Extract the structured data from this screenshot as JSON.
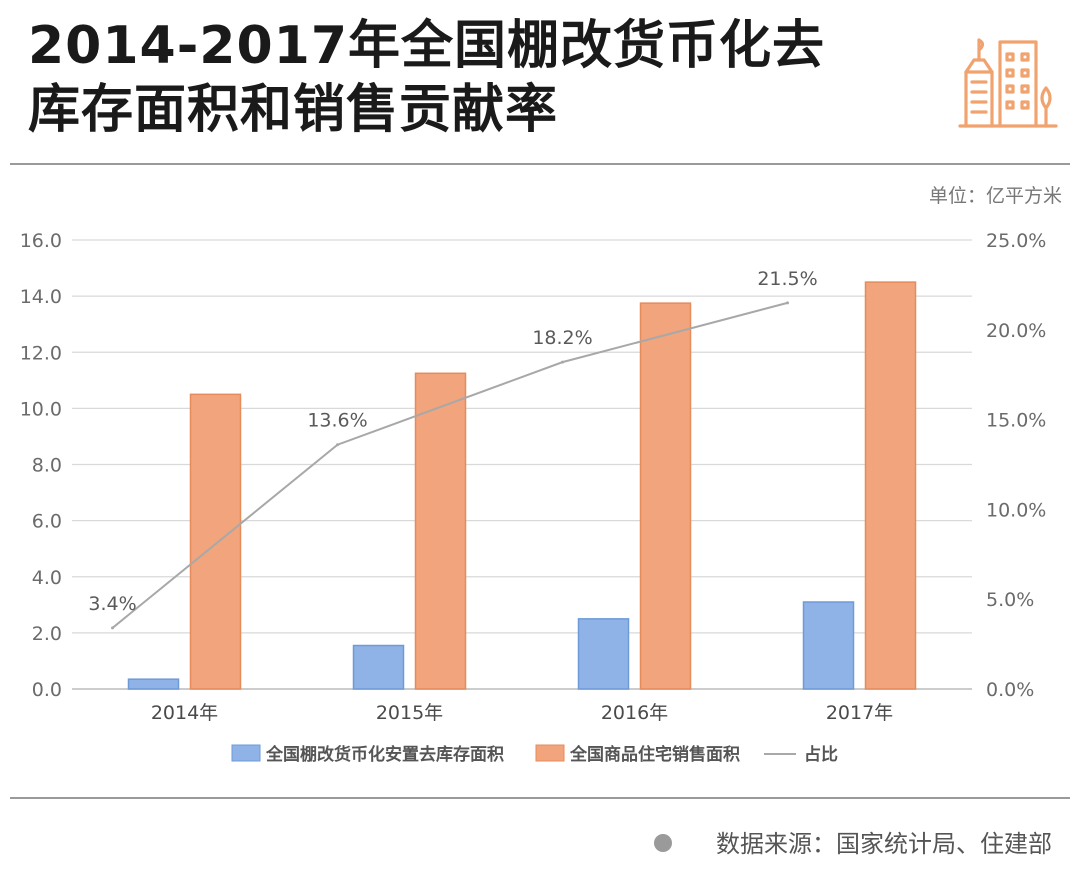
{
  "header": {
    "title_line1": "2014-2017年全国棚改货币化去",
    "title_line2": "库存面积和销售贡献率",
    "logo_icon": "city-buildings-icon",
    "accent_color": "#F0A36E"
  },
  "chart_data": {
    "type": "bar",
    "unit_label": "单位：亿平方米",
    "categories": [
      "2014年",
      "2015年",
      "2016年",
      "2017年"
    ],
    "series": [
      {
        "name": "全国棚改货币化安置去库存面积",
        "type": "bar",
        "axis": "left",
        "color": "#8FB3E6",
        "values": [
          0.35,
          1.55,
          2.5,
          3.1
        ]
      },
      {
        "name": "全国商品住宅销售面积",
        "type": "bar",
        "axis": "left",
        "color": "#F2A47C",
        "values": [
          10.5,
          11.25,
          13.75,
          14.5
        ]
      },
      {
        "name": "占比",
        "type": "line",
        "axis": "right",
        "color": "#A8A8A8",
        "values": [
          3.4,
          13.6,
          18.2,
          21.5
        ],
        "labels": [
          "3.4%",
          "13.6%",
          "18.2%",
          "21.5%"
        ]
      }
    ],
    "y_left": {
      "min": 0,
      "max": 16,
      "ticks": [
        "0.0",
        "2.0",
        "4.0",
        "6.0",
        "8.0",
        "10.0",
        "12.0",
        "14.0",
        "16.0"
      ]
    },
    "y_right": {
      "min": 0,
      "max": 25,
      "ticks": [
        "0.0%",
        "5.0%",
        "10.0%",
        "15.0%",
        "20.0%",
        "25.0%"
      ]
    },
    "grid": true,
    "legend_position": "bottom"
  },
  "footer": {
    "source": "数据来源：国家统计局、住建部"
  }
}
